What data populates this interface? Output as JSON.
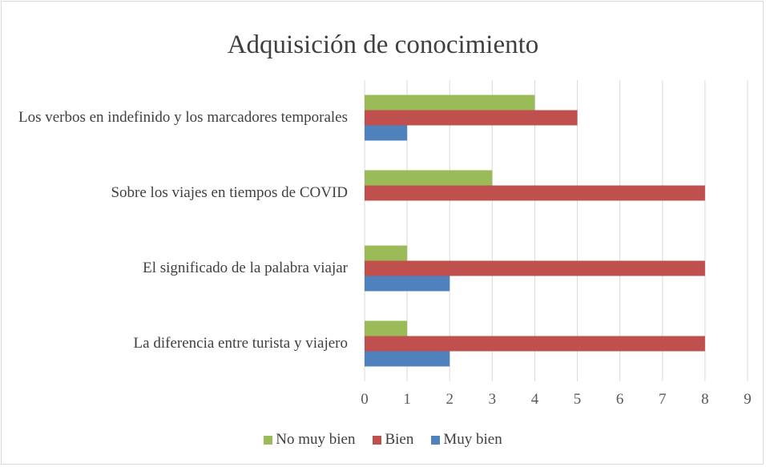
{
  "chart_data": {
    "type": "bar",
    "orientation": "horizontal",
    "title": "Adquisición de conocimiento",
    "categories": [
      "Los verbos en indefinido y los marcadores temporales",
      "Sobre los viajes en tiempos de COVID",
      "El significado de la palabra viajar",
      "La diferencia entre turista y viajero"
    ],
    "series": [
      {
        "name": "No muy bien",
        "color": "#9bbb59",
        "values": [
          4,
          3,
          1,
          1
        ]
      },
      {
        "name": "Bien",
        "color": "#c0504d",
        "values": [
          5,
          8,
          8,
          8
        ]
      },
      {
        "name": "Muy bien",
        "color": "#4f81bd",
        "values": [
          1,
          0,
          2,
          2
        ]
      }
    ],
    "xlim": [
      0,
      9
    ],
    "xticks": [
      0,
      1,
      2,
      3,
      4,
      5,
      6,
      7,
      8,
      9
    ],
    "grid": true,
    "legend": "bottom"
  }
}
